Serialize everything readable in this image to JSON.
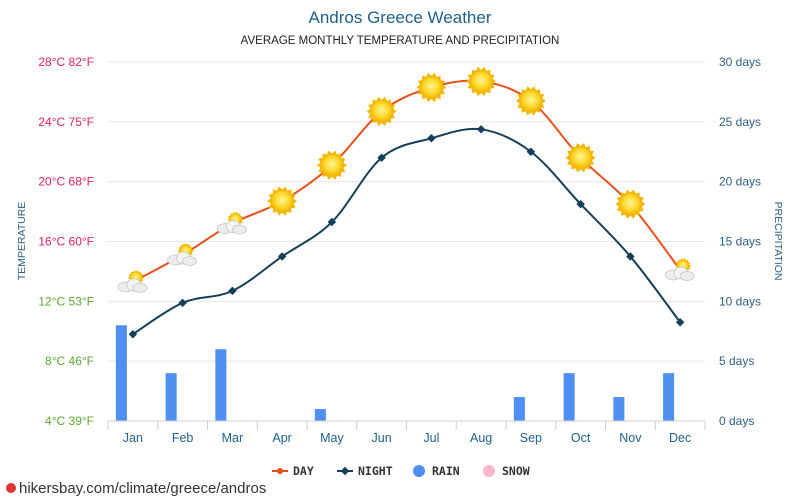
{
  "header": {
    "title": "Andros Greece Weather",
    "subtitle": "AVERAGE MONTHLY TEMPERATURE AND PRECIPITATION"
  },
  "watermark": "hikersbay.com/climate/greece/andros",
  "colors": {
    "day": "#e8501b",
    "night": "#143f5b",
    "rain": "#4f8ff2",
    "snow": "#ffb6c8",
    "temp_label_hot": "#e0235a",
    "temp_label_cool": "#5aa832",
    "right_axis": "#2d5f86"
  },
  "chart_data": {
    "type": "line",
    "title": "Andros Greece Weather",
    "subtitle": "AVERAGE MONTHLY TEMPERATURE AND PRECIPITATION",
    "categories": [
      "Jan",
      "Feb",
      "Mar",
      "Apr",
      "May",
      "Jun",
      "Jul",
      "Aug",
      "Sep",
      "Oct",
      "Nov",
      "Dec"
    ],
    "series": [
      {
        "name": "DAY",
        "axis": "left",
        "unit": "°C",
        "values": [
          13.3,
          15.1,
          17.2,
          18.7,
          21.1,
          24.7,
          26.3,
          26.7,
          25.4,
          21.6,
          18.5,
          14.1
        ]
      },
      {
        "name": "NIGHT",
        "axis": "left",
        "unit": "°C",
        "values": [
          9.8,
          11.9,
          12.7,
          15.0,
          17.3,
          21.6,
          22.9,
          23.5,
          22.0,
          18.5,
          15.0,
          10.6
        ]
      },
      {
        "name": "RAIN",
        "type": "bar",
        "axis": "right",
        "unit": "days",
        "values": [
          8,
          4,
          6,
          0,
          1,
          0,
          0,
          0,
          2,
          4,
          2,
          4
        ]
      },
      {
        "name": "SNOW",
        "type": "bar",
        "axis": "right",
        "unit": "days",
        "values": [
          0,
          0,
          0,
          0,
          0,
          0,
          0,
          0,
          0,
          0,
          0,
          0
        ]
      }
    ],
    "weather_icons": [
      "sun-cloud",
      "sun-cloud",
      "sun-cloud",
      "sun",
      "sun",
      "sun",
      "sun",
      "sun",
      "sun",
      "sun",
      "sun",
      "sun-cloud"
    ],
    "ylabel": "TEMPERATURE",
    "ylabel_right": "PRECIPITATION",
    "ylim": [
      4,
      28
    ],
    "ylim_right": [
      0,
      30
    ],
    "yticks": [
      "4°C 39°F",
      "8°C 46°F",
      "12°C 53°F",
      "16°C 60°F",
      "20°C 68°F",
      "24°C 75°F",
      "28°C 82°F"
    ],
    "yticks_right": [
      "0 days",
      "5 days",
      "10 days",
      "15 days",
      "20 days",
      "25 days",
      "30 days"
    ],
    "grid": true,
    "legend_position": "bottom-center",
    "legend": [
      "DAY",
      "NIGHT",
      "RAIN",
      "SNOW"
    ]
  }
}
